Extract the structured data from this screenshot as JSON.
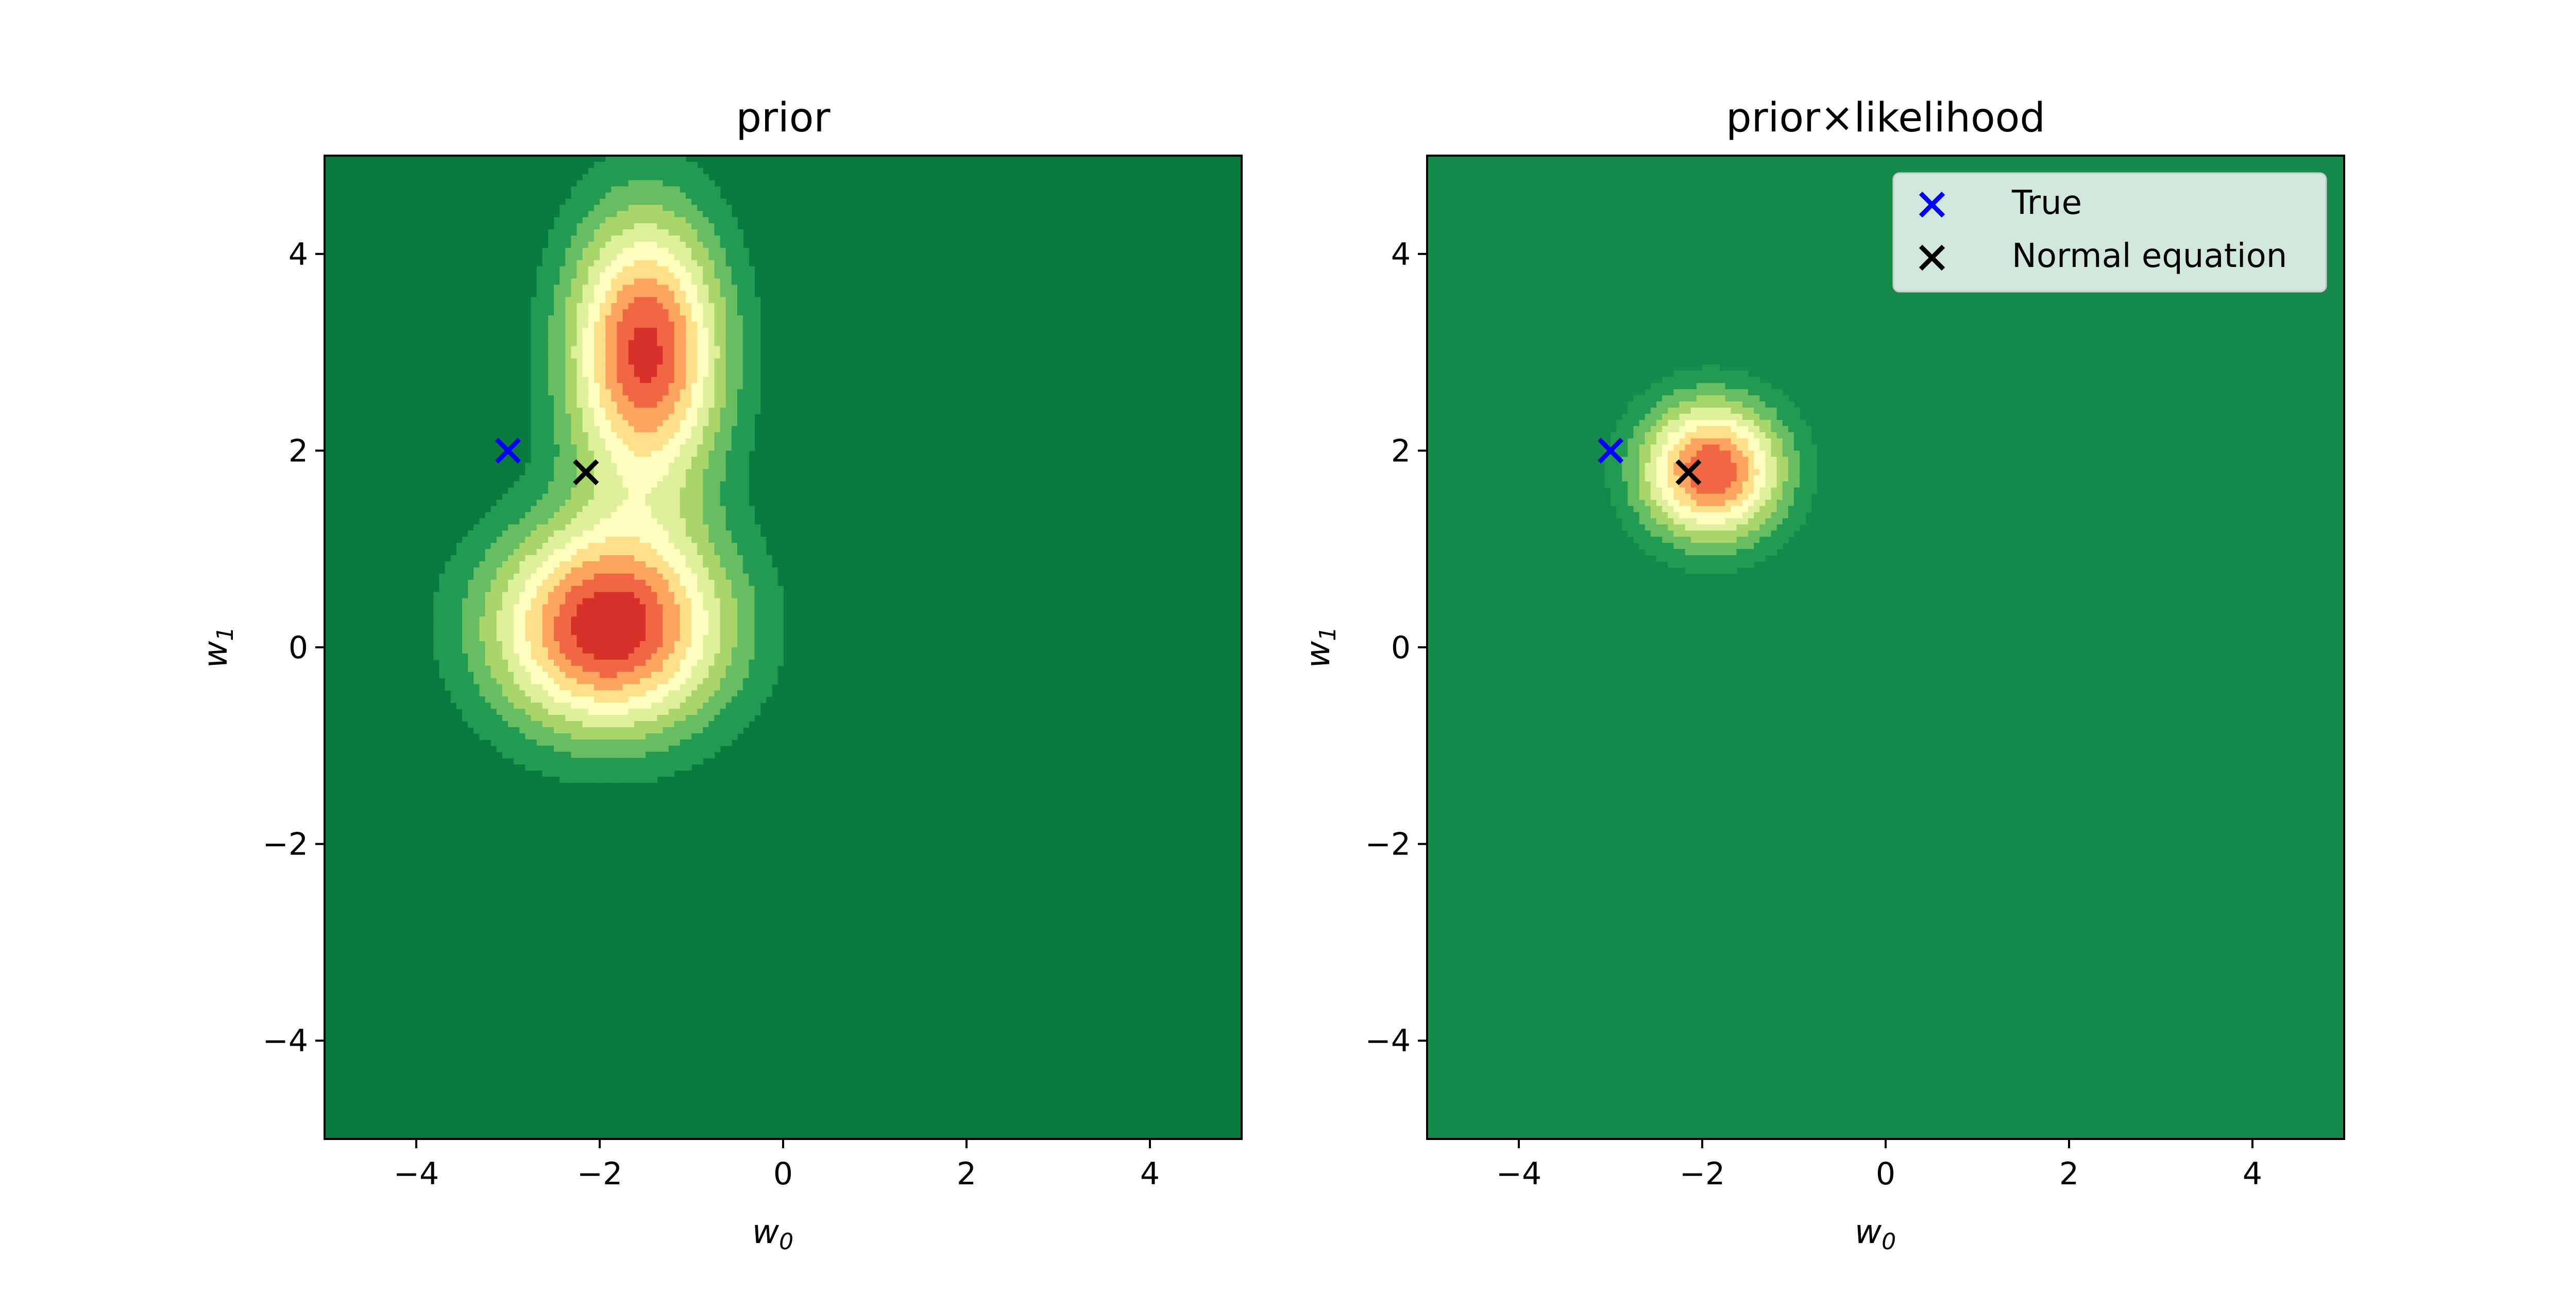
{
  "chart_data": [
    {
      "type": "contour",
      "title": "prior",
      "xlabel": "w",
      "xlabel_sub": "0",
      "ylabel": "w",
      "ylabel_sub": "1",
      "xlim": [
        -5,
        5
      ],
      "ylim": [
        -5,
        5
      ],
      "xticks": [
        -4,
        -2,
        0,
        2,
        4
      ],
      "yticks": [
        -4,
        -2,
        0,
        2,
        4
      ],
      "xtick_labels": [
        "−4",
        "−2",
        "0",
        "2",
        "4"
      ],
      "ytick_labels": [
        "−4",
        "−2",
        "0",
        "2",
        "4"
      ],
      "colormap": "RdYlGn_r",
      "levels": 8,
      "grid": false,
      "density_components": [
        {
          "weight": 1.0,
          "mean": [
            -1.9,
            0.2
          ],
          "sigma": [
            0.9,
            0.75
          ]
        },
        {
          "weight": 0.95,
          "mean": [
            -1.5,
            3.0
          ],
          "sigma": [
            0.6,
            1.0
          ]
        }
      ],
      "points": [
        {
          "label": "True",
          "x": -3.0,
          "y": 2.0,
          "marker": "x",
          "color": "#0000ff"
        },
        {
          "label": "Normal equation",
          "x": -2.15,
          "y": 1.78,
          "marker": "x",
          "color": "#000000"
        }
      ]
    },
    {
      "type": "contour",
      "title": "prior×likelihood",
      "xlabel": "w",
      "xlabel_sub": "0",
      "ylabel": "w",
      "ylabel_sub": "1",
      "xlim": [
        -5,
        5
      ],
      "ylim": [
        -5,
        5
      ],
      "xticks": [
        -4,
        -2,
        0,
        2,
        4
      ],
      "yticks": [
        -4,
        -2,
        0,
        2,
        4
      ],
      "xtick_labels": [
        "−4",
        "−2",
        "0",
        "2",
        "4"
      ],
      "ytick_labels": [
        "−4",
        "−2",
        "0",
        "2",
        "4"
      ],
      "colormap": "RdYlGn_r",
      "levels": 7,
      "grid": false,
      "density_components": [
        {
          "weight": 1.0,
          "mean": [
            -1.9,
            1.8
          ],
          "sigma": [
            0.55,
            0.5
          ]
        }
      ],
      "points": [
        {
          "label": "True",
          "x": -3.0,
          "y": 2.0,
          "marker": "x",
          "color": "#0000ff"
        },
        {
          "label": "Normal equation",
          "x": -2.15,
          "y": 1.78,
          "marker": "x",
          "color": "#000000"
        }
      ],
      "legend": {
        "position": "top-right",
        "entries": [
          {
            "label": "True",
            "color": "#0000ff"
          },
          {
            "label": "Normal equation",
            "color": "#000000"
          }
        ]
      }
    }
  ],
  "colors": {
    "contour_levels": [
      "#0b7a3f",
      "#229a51",
      "#67be62",
      "#a8d66a",
      "#dff09a",
      "#fffebe",
      "#fee08b",
      "#fda45e",
      "#f06843",
      "#d8312a",
      "#b9172b"
    ],
    "frame": "#000000"
  }
}
